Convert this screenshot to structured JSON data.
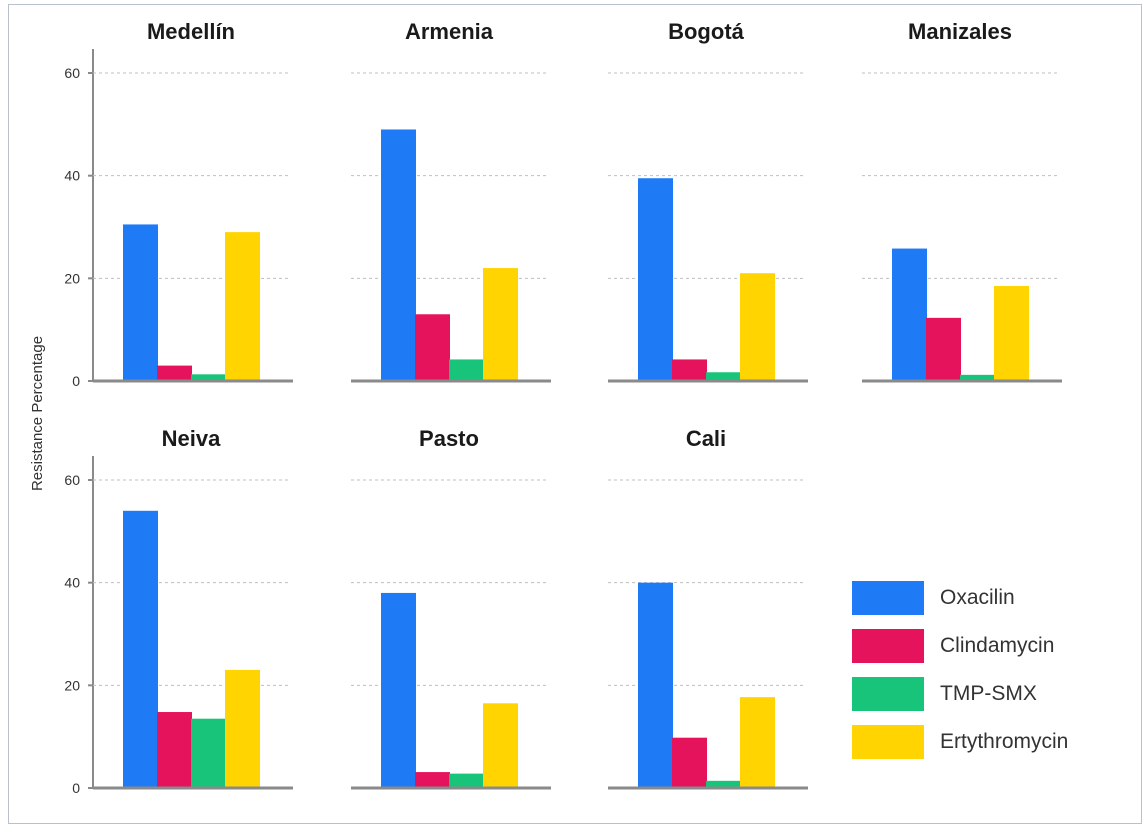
{
  "chart_data": {
    "type": "bar",
    "ylabel": "Resistance Percentage",
    "ylim": [
      0,
      60
    ],
    "yticks": [
      0,
      20,
      40,
      60
    ],
    "grid": "horizontal-dashed",
    "legend_position": "right",
    "series": [
      {
        "name": "Oxacilin",
        "color": "#1e7af5"
      },
      {
        "name": "Clindamycin",
        "color": "#e5135c"
      },
      {
        "name": "TMP-SMX",
        "color": "#17c479"
      },
      {
        "name": "Ertythromycin",
        "color": "#ffd400"
      }
    ],
    "panels": [
      {
        "title": "Medellín",
        "values": [
          30.5,
          3,
          1.3,
          29
        ]
      },
      {
        "title": "Armenia",
        "values": [
          49,
          13,
          4.2,
          22
        ]
      },
      {
        "title": "Bogotá",
        "values": [
          39.5,
          4.2,
          1.7,
          21
        ]
      },
      {
        "title": "Manizales",
        "values": [
          25.8,
          12.3,
          1.2,
          18.5
        ]
      },
      {
        "title": "Neiva",
        "values": [
          54,
          14.8,
          13.5,
          23
        ]
      },
      {
        "title": "Pasto",
        "values": [
          38,
          3.1,
          2.8,
          16.5
        ]
      },
      {
        "title": "Cali",
        "values": [
          40,
          9.8,
          1.4,
          17.7
        ]
      }
    ]
  }
}
